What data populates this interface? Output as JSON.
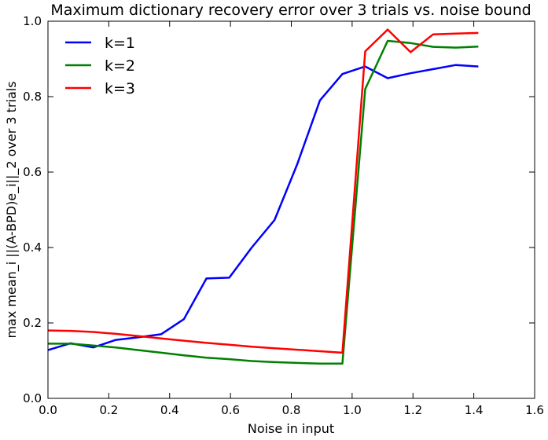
{
  "chart_data": {
    "type": "line",
    "title": "Maximum dictionary recovery error over 3 trials vs. noise bound",
    "xlabel": "Noise in input",
    "ylabel": "max mean_i ||(A-BPD)e_i||_2 over 3 trials",
    "xlim": [
      0.0,
      1.6
    ],
    "ylim": [
      0.0,
      1.0
    ],
    "xticks": [
      "0.0",
      "0.2",
      "0.4",
      "0.6",
      "0.8",
      "1.0",
      "1.2",
      "1.4",
      "1.6"
    ],
    "yticks": [
      "0.0",
      "0.2",
      "0.4",
      "0.6",
      "0.8",
      "1.0"
    ],
    "grid": false,
    "legend_position": "top-left",
    "series": [
      {
        "name": "k=1",
        "color": "#0000ff",
        "x": [
          0.0,
          0.074,
          0.149,
          0.223,
          0.298,
          0.372,
          0.447,
          0.521,
          0.596,
          0.67,
          0.745,
          0.819,
          0.894,
          0.968,
          1.043,
          1.117,
          1.192,
          1.266,
          1.341,
          1.415
        ],
        "y": [
          0.128,
          0.146,
          0.135,
          0.155,
          0.162,
          0.17,
          0.21,
          0.318,
          0.32,
          0.4,
          0.473,
          0.62,
          0.79,
          0.86,
          0.88,
          0.849,
          0.862,
          0.873,
          0.884,
          0.88
        ]
      },
      {
        "name": "k=2",
        "color": "#008000",
        "x": [
          0.0,
          0.074,
          0.149,
          0.223,
          0.298,
          0.372,
          0.447,
          0.521,
          0.596,
          0.67,
          0.745,
          0.819,
          0.894,
          0.968,
          1.043,
          1.117,
          1.192,
          1.266,
          1.341,
          1.415
        ],
        "y": [
          0.145,
          0.145,
          0.14,
          0.135,
          0.128,
          0.121,
          0.114,
          0.108,
          0.104,
          0.099,
          0.096,
          0.094,
          0.092,
          0.092,
          0.82,
          0.948,
          0.942,
          0.932,
          0.93,
          0.933
        ]
      },
      {
        "name": "k=3",
        "color": "#ff0000",
        "x": [
          0.0,
          0.074,
          0.149,
          0.223,
          0.298,
          0.372,
          0.447,
          0.521,
          0.596,
          0.67,
          0.745,
          0.819,
          0.894,
          0.968,
          1.043,
          1.117,
          1.192,
          1.266,
          1.341,
          1.415
        ],
        "y": [
          0.18,
          0.179,
          0.176,
          0.171,
          0.165,
          0.159,
          0.153,
          0.147,
          0.142,
          0.137,
          0.133,
          0.129,
          0.125,
          0.121,
          0.92,
          0.978,
          0.918,
          0.965,
          0.967,
          0.969
        ]
      }
    ]
  }
}
